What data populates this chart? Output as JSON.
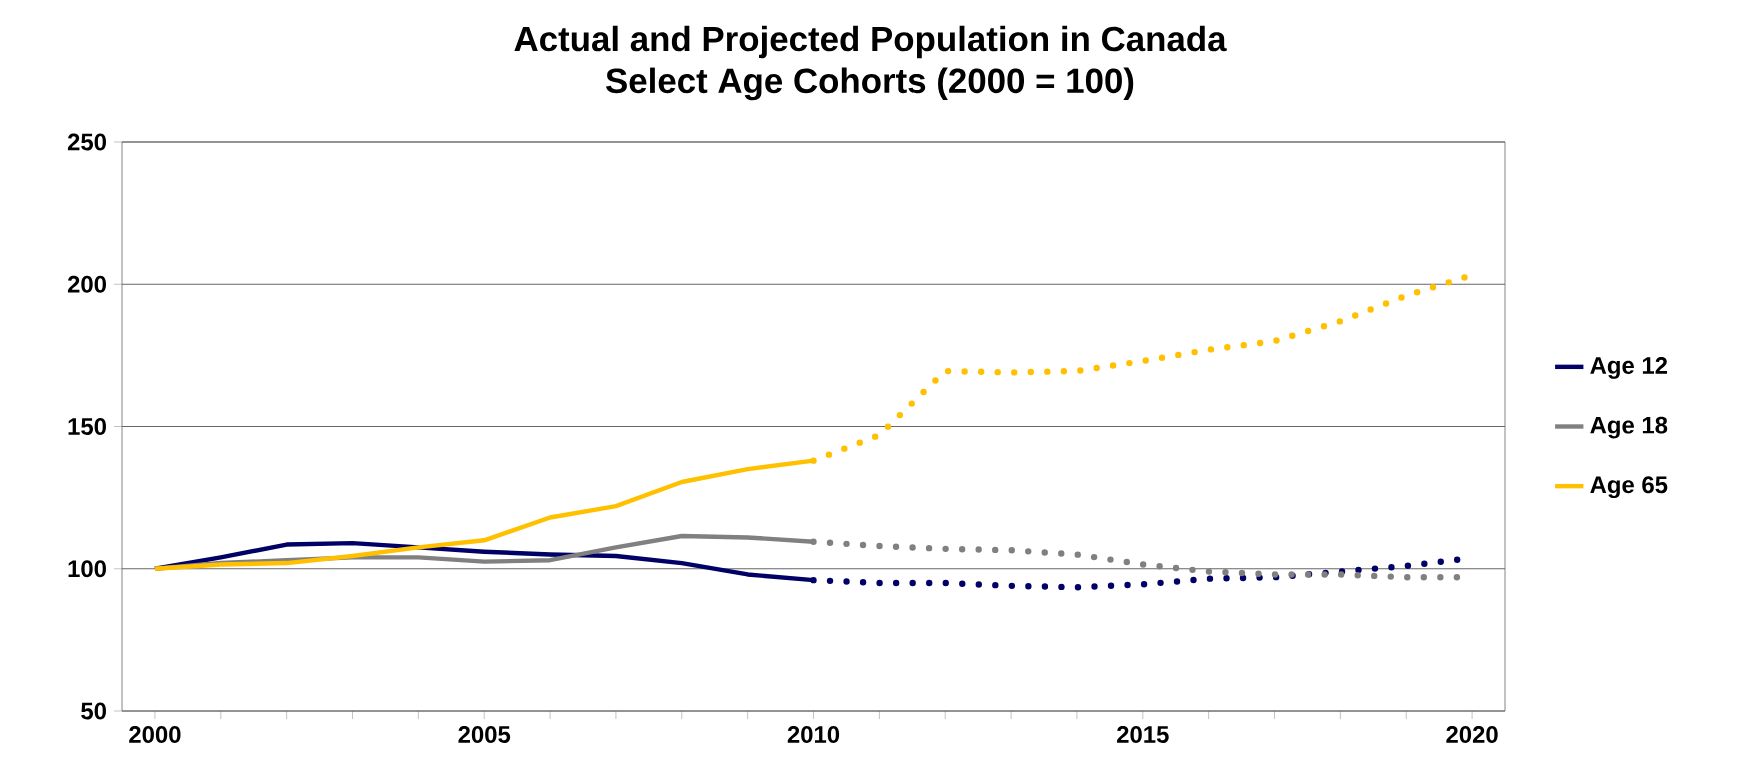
{
  "chart_data": {
    "type": "line",
    "title": "Actual and Projected Population in Canada",
    "subtitle": "Select Age Cohorts (2000 = 100)",
    "xlim": [
      1999.5,
      2020.5
    ],
    "ylim": [
      50,
      250
    ],
    "xticks": [
      2000,
      {
        "value": 2001,
        "label": null
      },
      {
        "value": 2002,
        "label": null
      },
      {
        "value": 2003,
        "label": null
      },
      {
        "value": 2004,
        "label": null
      },
      2005,
      {
        "value": 2006,
        "label": null
      },
      {
        "value": 2007,
        "label": null
      },
      {
        "value": 2008,
        "label": null
      },
      {
        "value": 2009,
        "label": null
      },
      2010,
      {
        "value": 2011,
        "label": null
      },
      {
        "value": 2012,
        "label": null
      },
      {
        "value": 2013,
        "label": null
      },
      {
        "value": 2014,
        "label": null
      },
      2015,
      {
        "value": 2016,
        "label": null
      },
      {
        "value": 2017,
        "label": null
      },
      {
        "value": 2018,
        "label": null
      },
      {
        "value": 2019,
        "label": null
      },
      2020
    ],
    "yticks": [
      50,
      100,
      150,
      200,
      250
    ],
    "grid": "y",
    "legend": "right",
    "series": [
      {
        "name": "Age 12",
        "color": "#000066",
        "line_style": "solid",
        "x": [
          2000,
          2001,
          2002,
          2003,
          2004,
          2005,
          2006,
          2007,
          2008,
          2009,
          2010
        ],
        "values": [
          100,
          104,
          108.5,
          109,
          107.5,
          106,
          105,
          104.5,
          102,
          98,
          96
        ]
      },
      {
        "name": "Age 18",
        "color": "#808080",
        "line_style": "solid",
        "x": [
          2000,
          2001,
          2002,
          2003,
          2004,
          2005,
          2006,
          2007,
          2008,
          2009,
          2010
        ],
        "values": [
          100,
          102,
          103,
          104,
          104,
          102.5,
          103,
          107.5,
          111.5,
          111,
          109.5
        ]
      },
      {
        "name": "Age 65",
        "color": "#ffc000",
        "line_style": "solid",
        "x": [
          2000,
          2001,
          2002,
          2003,
          2004,
          2005,
          2006,
          2007,
          2008,
          2009,
          2010
        ],
        "values": [
          100,
          101.5,
          102,
          104.5,
          107.5,
          110,
          118,
          122,
          130.5,
          135,
          138
        ]
      },
      {
        "color": "#000066",
        "line_style": "dotted",
        "x": [
          2010,
          2011,
          2012,
          2013,
          2014,
          2015,
          2016,
          2017,
          2018,
          2019,
          2019.9
        ],
        "values": [
          96,
          95,
          95,
          94,
          93.5,
          94.5,
          96.5,
          97,
          99,
          101,
          103.5
        ]
      },
      {
        "color": "#808080",
        "line_style": "dotted",
        "x": [
          2010,
          2011,
          2012,
          2013,
          2014,
          2015,
          2016,
          2017,
          2018,
          2019,
          2019.9
        ],
        "values": [
          109.5,
          108,
          107,
          106.5,
          105,
          101.5,
          99,
          98,
          98,
          97,
          97
        ]
      },
      {
        "color": "#ffc000",
        "line_style": "dotted",
        "x": [
          2010,
          2011,
          2012,
          2013,
          2014,
          2015,
          2016,
          2017,
          2018,
          2019,
          2019.9
        ],
        "values": [
          138,
          147,
          169.5,
          169,
          169.5,
          173,
          177,
          180,
          187,
          196,
          202.5
        ]
      }
    ]
  }
}
